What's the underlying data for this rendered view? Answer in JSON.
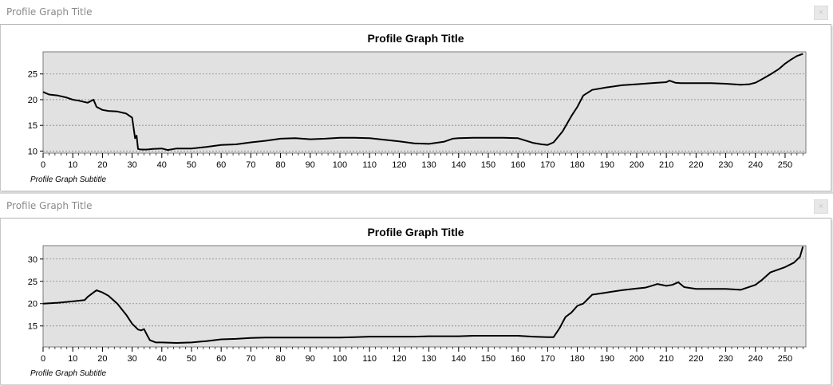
{
  "windows": [
    {
      "window_title": "Profile Graph Title",
      "close_label": "×"
    },
    {
      "window_title": "Profile Graph Title",
      "close_label": "×"
    }
  ],
  "colors": {
    "plot_background": "#e1e1e1",
    "line": "#000000",
    "grid": "#888888"
  },
  "chart_data": [
    {
      "type": "line",
      "title": "Profile Graph Title",
      "subtitle": "Profile Graph Subtitle",
      "xlabel": "",
      "ylabel": "",
      "xlim": [
        0,
        257
      ],
      "ylim": [
        9.6,
        29.3
      ],
      "grid": "horizontal dotted",
      "x_ticks": [
        0,
        10,
        20,
        30,
        40,
        50,
        60,
        70,
        80,
        90,
        100,
        110,
        120,
        130,
        140,
        150,
        160,
        170,
        180,
        190,
        200,
        210,
        220,
        230,
        240,
        250
      ],
      "y_ticks": [
        10,
        15,
        20,
        25
      ],
      "series": [
        {
          "x": [
            0,
            2,
            5,
            8,
            10,
            12,
            15,
            17,
            18,
            20,
            22,
            25,
            28,
            30,
            31,
            31.5,
            32,
            33,
            35,
            37,
            40,
            42,
            45,
            50,
            55,
            60,
            65,
            70,
            75,
            80,
            85,
            90,
            95,
            100,
            105,
            110,
            115,
            120,
            125,
            130,
            135,
            138,
            140,
            145,
            150,
            155,
            160,
            165,
            168,
            170,
            172,
            175,
            178,
            180,
            182,
            185,
            190,
            195,
            200,
            205,
            210,
            211,
            213,
            215,
            220,
            225,
            230,
            235,
            238,
            240,
            242,
            245,
            248,
            250,
            252,
            254,
            256
          ],
          "y": [
            21.5,
            21.0,
            20.8,
            20.4,
            20.0,
            19.8,
            19.4,
            20.0,
            18.6,
            18.0,
            17.8,
            17.7,
            17.3,
            16.5,
            12.5,
            13.0,
            10.4,
            10.3,
            10.3,
            10.4,
            10.5,
            10.2,
            10.5,
            10.5,
            10.8,
            11.2,
            11.3,
            11.7,
            12.0,
            12.4,
            12.5,
            12.3,
            12.4,
            12.6,
            12.6,
            12.5,
            12.2,
            11.9,
            11.5,
            11.4,
            11.8,
            12.4,
            12.5,
            12.6,
            12.6,
            12.6,
            12.5,
            11.6,
            11.3,
            11.2,
            11.7,
            13.8,
            16.8,
            18.6,
            20.8,
            21.9,
            22.4,
            22.8,
            23.0,
            23.2,
            23.4,
            23.7,
            23.3,
            23.2,
            23.2,
            23.2,
            23.1,
            22.9,
            23.0,
            23.3,
            23.9,
            24.9,
            26.0,
            27.0,
            27.8,
            28.5,
            28.9
          ]
        }
      ]
    },
    {
      "type": "line",
      "title": "Profile Graph Title",
      "subtitle": "Profile Graph Subtitle",
      "xlabel": "",
      "ylabel": "",
      "xlim": [
        0,
        257
      ],
      "ylim": [
        10.3,
        33.0
      ],
      "grid": "horizontal dotted",
      "x_ticks": [
        0,
        10,
        20,
        30,
        40,
        50,
        60,
        70,
        80,
        90,
        100,
        110,
        120,
        130,
        140,
        150,
        160,
        170,
        180,
        190,
        200,
        210,
        220,
        230,
        240,
        250
      ],
      "y_ticks": [
        15,
        20,
        25,
        30
      ],
      "series": [
        {
          "x": [
            0,
            5,
            10,
            14,
            15,
            17,
            18,
            20,
            22,
            25,
            28,
            30,
            32,
            33,
            34,
            35,
            36,
            38,
            40,
            45,
            50,
            55,
            60,
            65,
            70,
            75,
            80,
            85,
            90,
            95,
            100,
            105,
            110,
            115,
            120,
            125,
            130,
            135,
            140,
            145,
            150,
            155,
            160,
            165,
            170,
            172,
            174,
            176,
            178,
            180,
            182,
            185,
            190,
            195,
            200,
            203,
            205,
            207,
            210,
            212,
            214,
            216,
            220,
            225,
            230,
            235,
            240,
            242,
            245,
            250,
            253,
            255,
            256
          ],
          "y": [
            20.0,
            20.2,
            20.5,
            20.8,
            21.5,
            22.5,
            23.0,
            22.5,
            21.8,
            20.0,
            17.5,
            15.5,
            14.2,
            14.0,
            14.3,
            13.0,
            11.8,
            11.3,
            11.3,
            11.2,
            11.3,
            11.6,
            12.0,
            12.1,
            12.3,
            12.4,
            12.4,
            12.4,
            12.4,
            12.4,
            12.4,
            12.5,
            12.6,
            12.6,
            12.6,
            12.6,
            12.7,
            12.7,
            12.7,
            12.8,
            12.8,
            12.8,
            12.8,
            12.6,
            12.5,
            12.5,
            14.5,
            17.0,
            18.0,
            19.5,
            20.0,
            22.0,
            22.5,
            23.0,
            23.4,
            23.6,
            24.0,
            24.4,
            24.0,
            24.2,
            24.8,
            23.7,
            23.3,
            23.3,
            23.3,
            23.1,
            24.2,
            25.2,
            27.0,
            28.2,
            29.2,
            30.5,
            32.8
          ]
        }
      ]
    }
  ]
}
